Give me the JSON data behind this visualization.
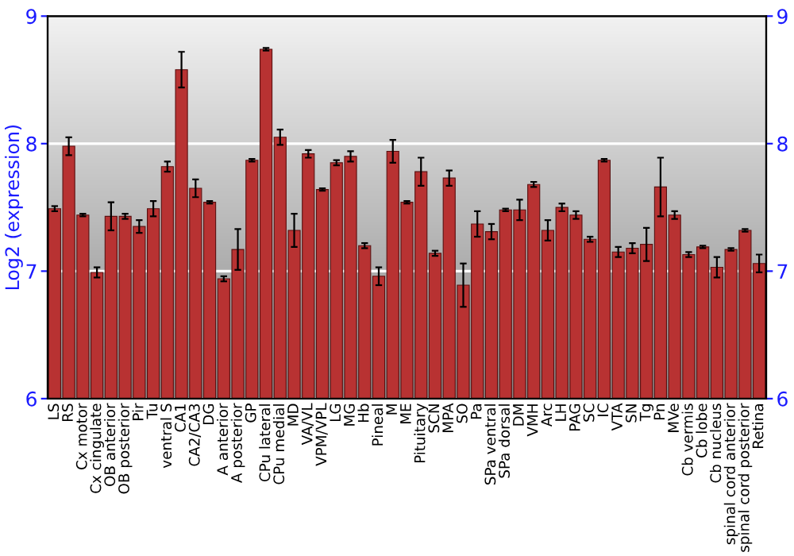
{
  "chart_data": {
    "type": "bar",
    "ylabel": "Log2 (expression)",
    "categories": [
      "LS",
      "RS",
      "Cx motor",
      "Cx cingulate",
      "OB anterior",
      "OB posterior",
      "Pir",
      "Tu",
      "ventral S",
      "CA1",
      "CA2/CA3",
      "DG",
      "A anterior",
      "A posterior",
      "GP",
      "CPu lateral",
      "CPu medial",
      "MD",
      "VA/VL",
      "VPM/VPL",
      "LG",
      "MG",
      "Hb",
      "Pineal",
      "M",
      "ME",
      "Pituitary",
      "SCN",
      "MPA",
      "SO",
      "Pa",
      "SPa ventral",
      "SPa dorsal",
      "DM",
      "VMH",
      "Arc",
      "LH",
      "PAG",
      "SC",
      "IC",
      "VTA",
      "SN",
      "Tg",
      "Pn",
      "MVe",
      "Cb vermis",
      "Cb lobe",
      "Cb nucleus",
      "spinal cord anterior",
      "spinal cord posterior",
      "Retina"
    ],
    "values": [
      7.49,
      7.98,
      7.44,
      6.99,
      7.43,
      7.43,
      7.35,
      7.49,
      7.82,
      8.58,
      7.65,
      7.54,
      6.94,
      7.17,
      7.87,
      8.74,
      8.05,
      7.32,
      7.92,
      7.64,
      7.85,
      7.9,
      7.2,
      6.96,
      7.94,
      7.54,
      7.78,
      7.14,
      7.73,
      6.89,
      7.37,
      7.31,
      7.48,
      7.48,
      7.68,
      7.32,
      7.5,
      7.44,
      7.25,
      7.87,
      7.15,
      7.18,
      7.21,
      7.66,
      7.44,
      7.13,
      7.19,
      7.03,
      7.17,
      7.32,
      7.06
    ],
    "errors": [
      0.02,
      0.07,
      0.01,
      0.04,
      0.11,
      0.02,
      0.05,
      0.06,
      0.04,
      0.14,
      0.07,
      0.01,
      0.02,
      0.16,
      0.01,
      0.01,
      0.06,
      0.13,
      0.03,
      0.01,
      0.02,
      0.04,
      0.02,
      0.07,
      0.09,
      0.01,
      0.11,
      0.02,
      0.06,
      0.17,
      0.1,
      0.06,
      0.01,
      0.08,
      0.02,
      0.08,
      0.03,
      0.03,
      0.02,
      0.01,
      0.04,
      0.04,
      0.13,
      0.23,
      0.03,
      0.02,
      0.01,
      0.08,
      0.01,
      0.01,
      0.07
    ],
    "color": "#b83232",
    "ylim": [
      6,
      9
    ],
    "yticks": [
      6,
      7,
      8,
      9
    ],
    "y2lim": [
      6,
      9
    ],
    "y2ticks": [
      6,
      7,
      8,
      9
    ],
    "grid": "y",
    "legend": false
  }
}
